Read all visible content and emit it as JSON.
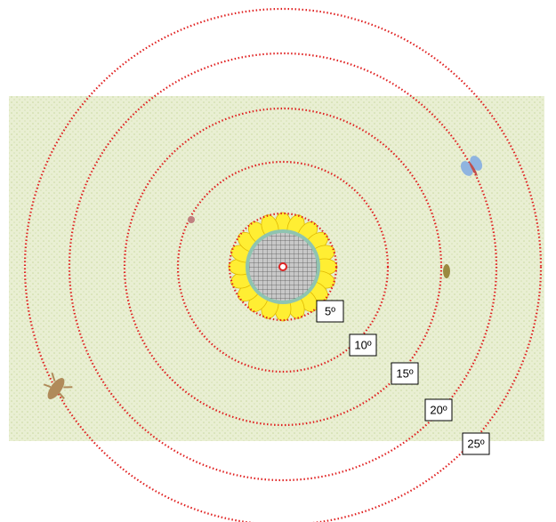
{
  "rings": [
    {
      "label": "5º"
    },
    {
      "label": "10º"
    },
    {
      "label": "15º"
    },
    {
      "label": "20º"
    },
    {
      "label": "25º"
    }
  ]
}
